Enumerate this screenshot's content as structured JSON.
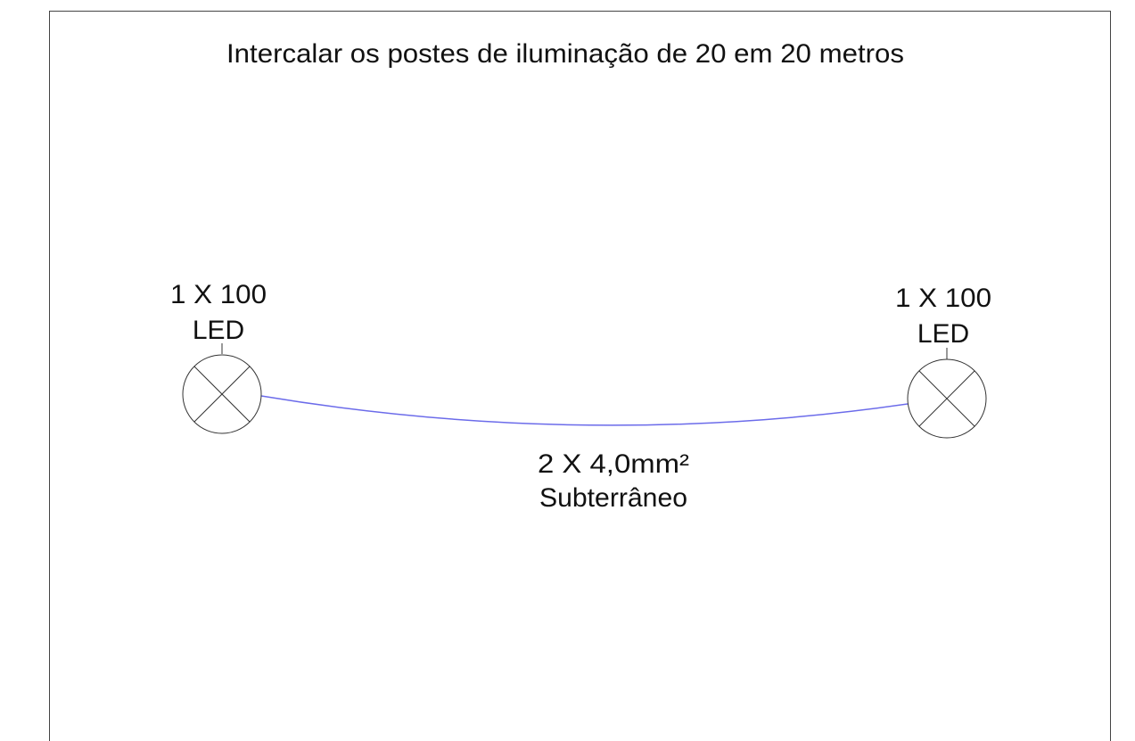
{
  "title": "Intercalar os postes de iluminação de 20 em 20 metros",
  "nodes": [
    {
      "label": [
        "1 X 100",
        "LED"
      ]
    },
    {
      "label": [
        "1 X 100",
        "LED"
      ]
    }
  ],
  "cable": {
    "label": [
      "2 X 4,0mm²",
      "Subterrâneo"
    ]
  }
}
